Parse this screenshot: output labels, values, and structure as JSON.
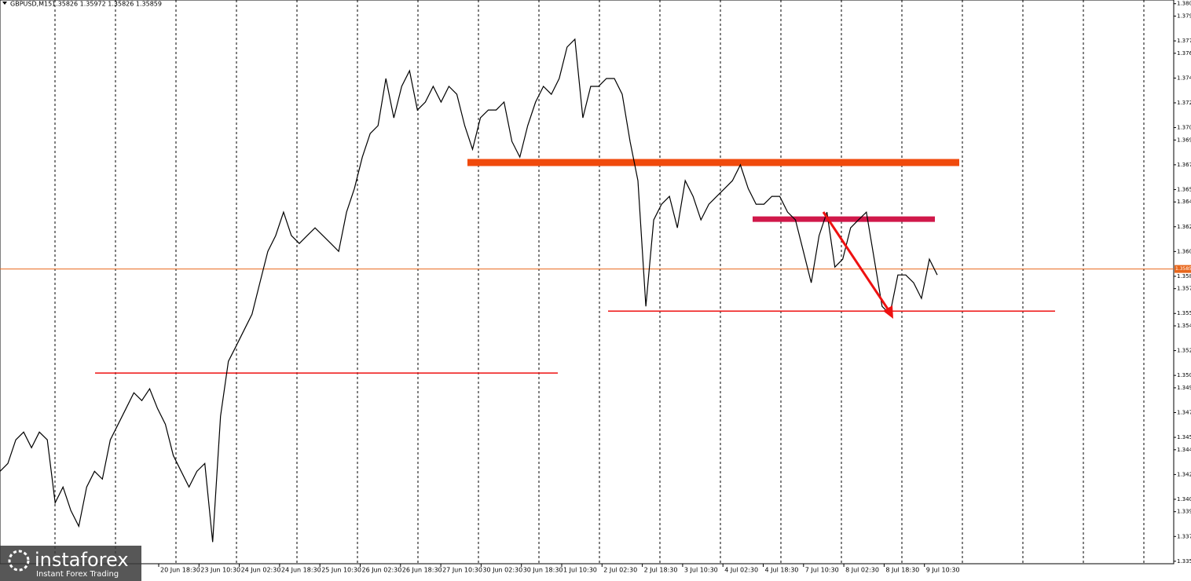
{
  "chart_data": {
    "type": "line",
    "title": "GBPUSD,M15",
    "ohlc_text": "1.35826 1.35972 1.35826 1.35859",
    "current_price": {
      "value": 1.35859,
      "label": "1.35859",
      "color": "#e8671c"
    },
    "series": [
      {
        "name": "GBPUSD",
        "color": "#000000",
        "values": [
          1.34226,
          1.34289,
          1.3448,
          1.34543,
          1.34416,
          1.34543,
          1.3448,
          1.33972,
          1.34099,
          1.33909,
          1.33782,
          1.34099,
          1.34226,
          1.34163,
          1.3448,
          1.34606,
          1.34733,
          1.3486,
          1.34797,
          1.34892,
          1.34733,
          1.34606,
          1.34353,
          1.34226,
          1.34099,
          1.34226,
          1.34289,
          1.33655,
          1.3467,
          1.35114,
          1.3524,
          1.35367,
          1.35494,
          1.35748,
          1.36001,
          1.36128,
          1.36318,
          1.36128,
          1.36065,
          1.36128,
          1.36191,
          1.36128,
          1.36065,
          1.36001,
          1.36318,
          1.36508,
          1.36762,
          1.36952,
          1.37016,
          1.37396,
          1.37079,
          1.37333,
          1.37459,
          1.37142,
          1.37206,
          1.37333,
          1.37206,
          1.37333,
          1.37269,
          1.37016,
          1.36825,
          1.37079,
          1.37142,
          1.37142,
          1.37206,
          1.36889,
          1.36762,
          1.37016,
          1.37206,
          1.37333,
          1.37269,
          1.37396,
          1.3765,
          1.37713,
          1.37079,
          1.37333,
          1.37333,
          1.37396,
          1.37396,
          1.37269,
          1.36889,
          1.36572,
          1.35557,
          1.36255,
          1.36382,
          1.36445,
          1.36191,
          1.36572,
          1.36445,
          1.36255,
          1.36382,
          1.36445,
          1.36508,
          1.36572,
          1.36699,
          1.36508,
          1.36382,
          1.36382,
          1.36445,
          1.36445,
          1.36318,
          1.36255,
          1.36001,
          1.35748,
          1.36128,
          1.36318,
          1.35874,
          1.35938,
          1.36191,
          1.36255,
          1.36318,
          1.35938,
          1.35557,
          1.35494,
          1.35811,
          1.35811,
          1.35748,
          1.35621,
          1.35938,
          1.35811
        ]
      }
    ],
    "levels": [
      {
        "value": 1.36718,
        "color": "#f04a0c"
      },
      {
        "value": 1.36261,
        "color": "#d0184a"
      },
      {
        "value": 1.35519,
        "color": "#ee1111"
      },
      {
        "value": 1.35019,
        "color": "#ee1111"
      }
    ],
    "ylim": [
      1.3348,
      1.3803
    ],
    "yticks": [
      {
        "value": 1.38,
        "label": "1.380"
      },
      1.379,
      1.377,
      1.376,
      1.374,
      1.372,
      {
        "value": 1.37,
        "label": "1.370"
      },
      1.369,
      1.367,
      1.365,
      1.364,
      1.362,
      {
        "value": 1.36,
        "label": "1.360"
      },
      1.358,
      1.357,
      1.355,
      1.354,
      1.352,
      {
        "value": 1.35,
        "label": "1.350"
      },
      1.349,
      1.347,
      1.345,
      1.344,
      1.342,
      {
        "value": 1.34,
        "label": "1.340"
      },
      1.339,
      1.337,
      1.335
    ],
    "x_labels": [
      "20 Jun 18:30",
      "23 Jun 10:30",
      "24 Jun 02:30",
      "24 Jun 18:30",
      "25 Jun 10:30",
      "26 Jun 02:30",
      "26 Jun 18:30",
      "27 Jun 10:30",
      "30 Jun 02:30",
      "30 Jun 18:30",
      "1 Jul 10:30",
      "2 Jul 02:30",
      "2 Jul 18:30",
      "3 Jul 10:30",
      "4 Jul 02:30",
      "4 Jul 18:30",
      "7 Jul 10:30",
      "8 Jul 02:30",
      "8 Jul 18:30",
      "9 Jul 10:30"
    ]
  },
  "logo": {
    "brand": "instaforex",
    "tagline": "Instant Forex Trading"
  }
}
